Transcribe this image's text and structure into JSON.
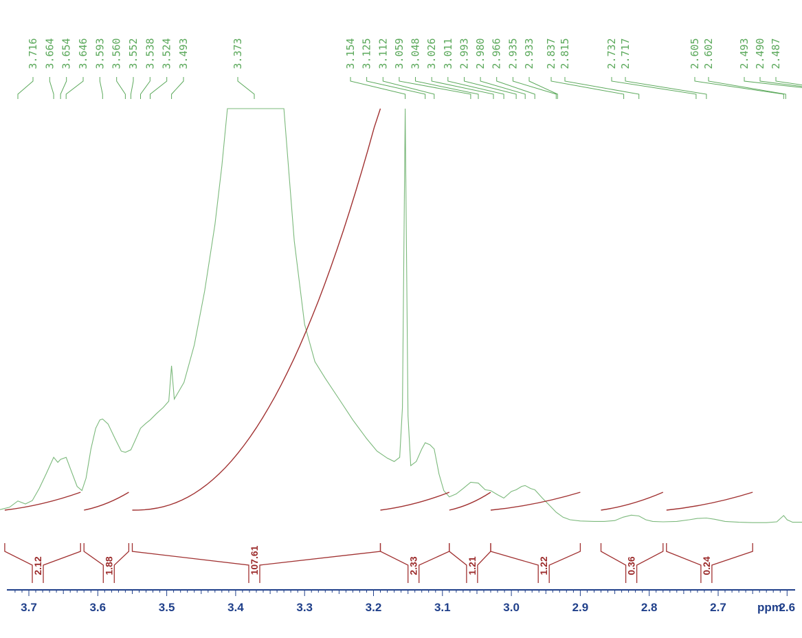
{
  "chart_data": {
    "type": "line",
    "title": "",
    "xlabel": "ppm",
    "ylabel": "",
    "xlim": [
      3.755,
      2.42
    ],
    "x_reversed": true,
    "grid": false,
    "colors": {
      "spectrum": "#7ab87a",
      "peak_labels": "#5aa85a",
      "integral": "#a03030",
      "axis": "#1f3f8a"
    },
    "x_ticks": [
      "3.7",
      "3.6",
      "3.5",
      "3.4",
      "3.3",
      "3.2",
      "3.1",
      "3.0",
      "2.9",
      "2.8",
      "2.7",
      "2.6"
    ],
    "peak_labels": [
      "3.716",
      "3.664",
      "3.654",
      "3.646",
      "3.593",
      "3.560",
      "3.552",
      "3.538",
      "3.524",
      "3.493",
      "3.373",
      "3.154",
      "3.125",
      "3.112",
      "3.059",
      "3.048",
      "3.026",
      "3.011",
      "2.993",
      "2.980",
      "2.966",
      "2.935",
      "2.933",
      "2.837",
      "2.815",
      "2.732",
      "2.717",
      "2.605",
      "2.602",
      "2.493",
      "2.490",
      "2.487"
    ],
    "integrals": [
      {
        "from": 3.735,
        "to": 3.625,
        "value": "2.12",
        "label_at": 3.687
      },
      {
        "from": 3.62,
        "to": 3.555,
        "value": "1.88",
        "label_at": 3.584
      },
      {
        "from": 3.55,
        "to": 3.19,
        "value": "107.61",
        "label_at": 3.373
      },
      {
        "from": 3.19,
        "to": 3.09,
        "value": "2.33",
        "label_at": 3.142
      },
      {
        "from": 3.09,
        "to": 3.03,
        "value": "1.21",
        "label_at": 3.057
      },
      {
        "from": 3.03,
        "to": 2.9,
        "value": "1.22",
        "label_at": 2.953
      },
      {
        "from": 2.87,
        "to": 2.78,
        "value": "0.36",
        "label_at": 2.826
      },
      {
        "from": 2.775,
        "to": 2.65,
        "value": "0.24",
        "label_at": 2.717
      }
    ],
    "series": [
      {
        "values": [
          [
            3.755,
            0.03
          ],
          [
            3.74,
            0.035
          ],
          [
            3.728,
            0.04
          ],
          [
            3.716,
            0.055
          ],
          [
            3.705,
            0.048
          ],
          [
            3.695,
            0.056
          ],
          [
            3.685,
            0.085
          ],
          [
            3.675,
            0.12
          ],
          [
            3.664,
            0.16
          ],
          [
            3.658,
            0.148
          ],
          [
            3.654,
            0.155
          ],
          [
            3.646,
            0.16
          ],
          [
            3.638,
            0.125
          ],
          [
            3.63,
            0.09
          ],
          [
            3.623,
            0.08
          ],
          [
            3.617,
            0.11
          ],
          [
            3.61,
            0.18
          ],
          [
            3.603,
            0.23
          ],
          [
            3.597,
            0.25
          ],
          [
            3.593,
            0.252
          ],
          [
            3.585,
            0.24
          ],
          [
            3.575,
            0.205
          ],
          [
            3.566,
            0.175
          ],
          [
            3.56,
            0.172
          ],
          [
            3.552,
            0.178
          ],
          [
            3.546,
            0.2
          ],
          [
            3.538,
            0.23
          ],
          [
            3.53,
            0.242
          ],
          [
            3.524,
            0.25
          ],
          [
            3.515,
            0.265
          ],
          [
            3.505,
            0.28
          ],
          [
            3.497,
            0.295
          ],
          [
            3.493,
            0.38
          ],
          [
            3.489,
            0.3
          ],
          [
            3.475,
            0.34
          ],
          [
            3.46,
            0.43
          ],
          [
            3.445,
            0.56
          ],
          [
            3.43,
            0.72
          ],
          [
            3.42,
            0.86
          ],
          [
            3.412,
            1.0
          ],
          [
            3.405,
            1.2
          ],
          [
            3.395,
            1.6
          ],
          [
            3.385,
            2.5
          ],
          [
            3.373,
            4.0
          ],
          [
            3.36,
            2.6
          ],
          [
            3.345,
            1.6
          ],
          [
            3.33,
            1.08
          ],
          [
            3.315,
            0.68
          ],
          [
            3.3,
            0.48
          ],
          [
            3.285,
            0.39
          ],
          [
            3.27,
            0.35
          ],
          [
            3.25,
            0.3
          ],
          [
            3.23,
            0.25
          ],
          [
            3.21,
            0.205
          ],
          [
            3.195,
            0.175
          ],
          [
            3.18,
            0.158
          ],
          [
            3.17,
            0.15
          ],
          [
            3.162,
            0.16
          ],
          [
            3.158,
            0.28
          ],
          [
            3.154,
            1.15
          ],
          [
            3.15,
            0.26
          ],
          [
            3.146,
            0.14
          ],
          [
            3.138,
            0.15
          ],
          [
            3.13,
            0.18
          ],
          [
            3.125,
            0.195
          ],
          [
            3.118,
            0.19
          ],
          [
            3.112,
            0.18
          ],
          [
            3.105,
            0.12
          ],
          [
            3.098,
            0.08
          ],
          [
            3.09,
            0.065
          ],
          [
            3.08,
            0.072
          ],
          [
            3.07,
            0.085
          ],
          [
            3.059,
            0.1
          ],
          [
            3.048,
            0.098
          ],
          [
            3.038,
            0.082
          ],
          [
            3.03,
            0.08
          ],
          [
            3.02,
            0.07
          ],
          [
            3.011,
            0.062
          ],
          [
            3.0,
            0.078
          ],
          [
            2.993,
            0.082
          ],
          [
            2.985,
            0.09
          ],
          [
            2.98,
            0.092
          ],
          [
            2.972,
            0.085
          ],
          [
            2.966,
            0.082
          ],
          [
            2.955,
            0.062
          ],
          [
            2.945,
            0.045
          ],
          [
            2.935,
            0.028
          ],
          [
            2.925,
            0.016
          ],
          [
            2.915,
            0.01
          ],
          [
            2.9,
            0.007
          ],
          [
            2.88,
            0.006
          ],
          [
            2.865,
            0.006
          ],
          [
            2.85,
            0.008
          ],
          [
            2.838,
            0.016
          ],
          [
            2.826,
            0.021
          ],
          [
            2.815,
            0.019
          ],
          [
            2.805,
            0.01
          ],
          [
            2.795,
            0.006
          ],
          [
            2.78,
            0.005
          ],
          [
            2.76,
            0.006
          ],
          [
            2.742,
            0.01
          ],
          [
            2.73,
            0.013
          ],
          [
            2.717,
            0.014
          ],
          [
            2.705,
            0.011
          ],
          [
            2.69,
            0.006
          ],
          [
            2.67,
            0.004
          ],
          [
            2.65,
            0.003
          ],
          [
            2.63,
            0.003
          ],
          [
            2.615,
            0.005
          ],
          [
            2.605,
            0.02
          ],
          [
            2.6,
            0.01
          ],
          [
            2.592,
            0.004
          ],
          [
            2.575,
            0.004
          ],
          [
            2.555,
            0.006
          ],
          [
            2.54,
            0.009
          ],
          [
            2.525,
            0.016
          ],
          [
            2.512,
            0.038
          ],
          [
            2.504,
            0.1
          ],
          [
            2.498,
            0.35
          ],
          [
            2.493,
            1.2
          ],
          [
            2.49,
            1.2
          ],
          [
            2.487,
            1.2
          ],
          [
            2.483,
            0.35
          ],
          [
            2.477,
            0.1
          ],
          [
            2.468,
            0.04
          ],
          [
            2.455,
            0.018
          ],
          [
            2.44,
            0.01
          ],
          [
            2.42,
            0.007
          ]
        ]
      }
    ]
  }
}
